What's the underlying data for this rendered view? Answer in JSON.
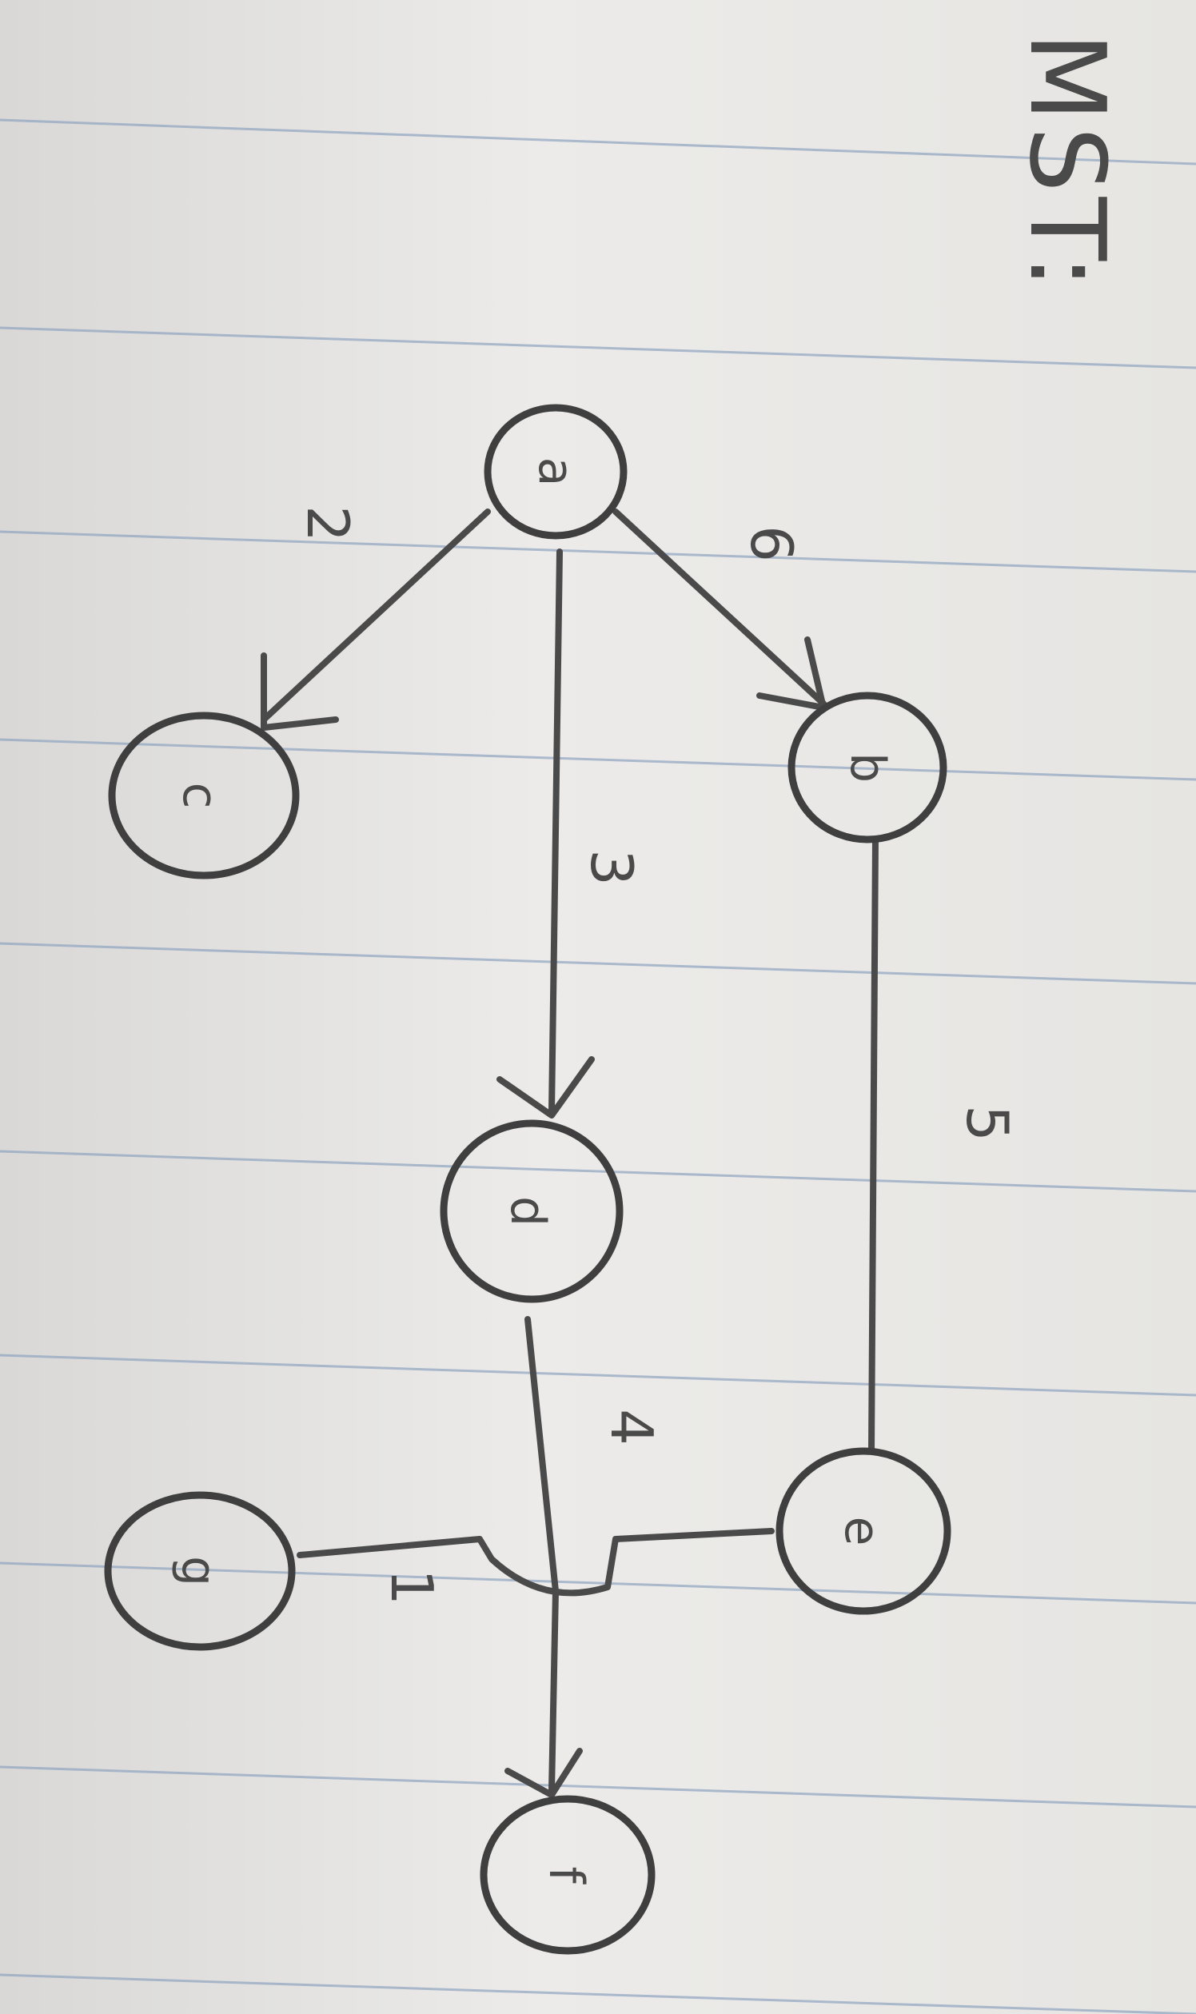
{
  "title": "MST:",
  "nodes": [
    {
      "id": "a",
      "label": "a"
    },
    {
      "id": "b",
      "label": "b"
    },
    {
      "id": "c",
      "label": "c"
    },
    {
      "id": "d",
      "label": "d"
    },
    {
      "id": "e",
      "label": "e"
    },
    {
      "id": "f",
      "label": "f"
    },
    {
      "id": "g",
      "label": "g"
    }
  ],
  "edges": [
    {
      "from": "a",
      "to": "c",
      "weight": "2",
      "directed": true
    },
    {
      "from": "a",
      "to": "b",
      "weight": "6",
      "directed": true
    },
    {
      "from": "a",
      "to": "d",
      "weight": "3",
      "directed": true
    },
    {
      "from": "b",
      "to": "e",
      "weight": "5",
      "directed": false
    },
    {
      "from": "d",
      "to": "f",
      "weight": "4",
      "directed": true
    },
    {
      "from": "g",
      "to": "e",
      "weight": "1",
      "directed": false
    }
  ],
  "colors": {
    "ink": "#4a4a4a",
    "rule_lines": "#8fa4c0",
    "paper": "#e9e8e6"
  }
}
